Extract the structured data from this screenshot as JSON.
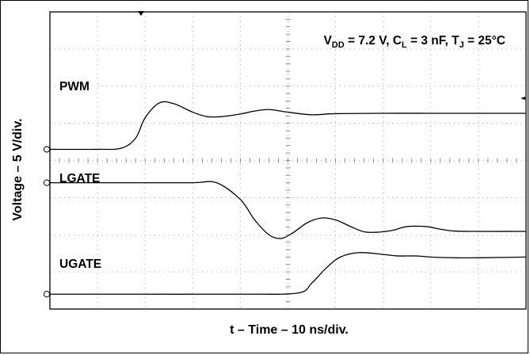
{
  "chart_data": {
    "type": "line",
    "annotation": {
      "vdd_label": "V",
      "vdd_sub": "DD",
      "vdd_val": " = 7.2 V, ",
      "cl_label": "C",
      "cl_sub": "L",
      "cl_val": " = 3 nF, ",
      "tj_label": "T",
      "tj_sub": "J",
      "tj_val": " = 25°C"
    },
    "xlabel": "t – Time – 10 ns/div.",
    "ylabel": "Voltage – 5 V/div.",
    "xlim": [
      0,
      10
    ],
    "ylim": [
      0,
      8
    ],
    "grid": true,
    "series": [
      {
        "name": "PWM",
        "x": [
          0,
          1.0,
          1.5,
          1.8,
          2.0,
          2.3,
          2.6,
          3.0,
          3.3,
          3.6,
          4.0,
          4.3,
          4.6,
          5.0,
          5.5,
          6.0,
          7.0,
          8.0,
          9.0,
          10
        ],
        "y": [
          4.3,
          4.3,
          4.33,
          4.6,
          5.15,
          5.55,
          5.53,
          5.3,
          5.18,
          5.18,
          5.25,
          5.33,
          5.37,
          5.3,
          5.23,
          5.26,
          5.27,
          5.27,
          5.27,
          5.27
        ]
      },
      {
        "name": "LGATE",
        "x": [
          0,
          1.0,
          2.0,
          3.0,
          3.5,
          4.0,
          4.3,
          4.6,
          4.85,
          5.1,
          5.4,
          5.7,
          6.0,
          6.3,
          6.6,
          6.9,
          7.2,
          7.5,
          7.9,
          8.2,
          8.5,
          9.0,
          10
        ],
        "y": [
          3.4,
          3.4,
          3.4,
          3.4,
          3.4,
          2.95,
          2.4,
          2.0,
          1.9,
          2.05,
          2.32,
          2.45,
          2.4,
          2.23,
          2.08,
          2.07,
          2.12,
          2.22,
          2.22,
          2.15,
          2.1,
          2.09,
          2.09
        ]
      },
      {
        "name": "UGATE",
        "x": [
          0,
          2.0,
          4.0,
          5.2,
          5.5,
          5.8,
          6.1,
          6.5,
          7.0,
          7.3,
          7.7,
          8.0,
          8.5,
          9.0,
          10
        ],
        "y": [
          0.4,
          0.4,
          0.4,
          0.43,
          0.7,
          1.1,
          1.4,
          1.52,
          1.47,
          1.43,
          1.43,
          1.4,
          1.38,
          1.38,
          1.4
        ]
      }
    ]
  }
}
